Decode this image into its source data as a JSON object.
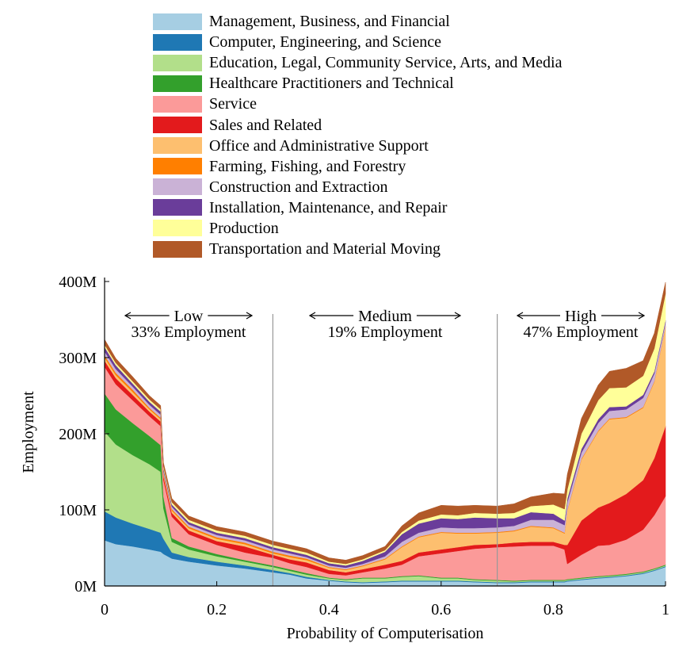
{
  "chart_data": {
    "type": "area",
    "stacked": true,
    "xlabel": "Probability of Computerisation",
    "ylabel": "Employment",
    "xlim": [
      0,
      1
    ],
    "ylim": [
      0,
      400
    ],
    "x_ticks": [
      "0",
      "0.2",
      "0.4",
      "0.6",
      "0.8",
      "1"
    ],
    "y_ticks": [
      "0M",
      "100M",
      "200M",
      "300M",
      "400M"
    ],
    "legend_position": "top",
    "region_dividers": [
      0.3,
      0.7
    ],
    "regions": [
      {
        "name": "Low",
        "share": "33% Employment"
      },
      {
        "name": "Medium",
        "share": "19% Employment"
      },
      {
        "name": "High",
        "share": "47% Employment"
      }
    ],
    "x": [
      0,
      0.02,
      0.05,
      0.08,
      0.1,
      0.105,
      0.12,
      0.15,
      0.2,
      0.25,
      0.3,
      0.33,
      0.36,
      0.4,
      0.43,
      0.46,
      0.5,
      0.53,
      0.56,
      0.6,
      0.63,
      0.66,
      0.7,
      0.73,
      0.76,
      0.8,
      0.82,
      0.825,
      0.85,
      0.88,
      0.9,
      0.93,
      0.96,
      0.98,
      1.0
    ],
    "series": [
      {
        "name": "Management, Business, and Financial",
        "color": "#a6cee3",
        "values": [
          60,
          55,
          52,
          48,
          45,
          42,
          36,
          32,
          27,
          23,
          18,
          15,
          10,
          7,
          5,
          4,
          5,
          6,
          6,
          6,
          6,
          5,
          4,
          4,
          5,
          5,
          5,
          6,
          8,
          10,
          11,
          13,
          16,
          20,
          25
        ]
      },
      {
        "name": "Computer, Engineering, and Science",
        "color": "#1f78b4",
        "values": [
          38,
          35,
          30,
          27,
          25,
          20,
          8,
          6,
          5,
          4,
          3,
          2,
          2,
          1,
          1,
          1,
          1,
          1,
          1,
          1,
          1,
          1,
          1,
          1,
          1,
          1,
          1,
          1,
          1,
          1,
          1,
          1,
          1,
          1,
          1
        ]
      },
      {
        "name": "Education, Legal, Community Service, Arts, and Media",
        "color": "#b2df8a",
        "values": [
          105,
          96,
          90,
          85,
          80,
          40,
          14,
          10,
          7,
          5,
          4,
          3,
          3,
          2,
          2,
          5,
          4,
          5,
          6,
          3,
          3,
          2,
          2,
          1,
          1,
          1,
          1,
          1,
          1,
          1,
          1,
          1,
          1,
          1,
          1
        ]
      },
      {
        "name": "Healthcare Practitioners and Technical",
        "color": "#33a02c",
        "values": [
          50,
          46,
          42,
          37,
          35,
          15,
          5,
          4,
          3,
          2,
          2,
          2,
          2,
          1,
          1,
          1,
          1,
          1,
          1,
          1,
          1,
          1,
          1,
          1,
          1,
          1,
          1,
          1,
          1,
          1,
          1,
          1,
          1,
          1,
          1
        ]
      },
      {
        "name": "Service",
        "color": "#fb9a99",
        "values": [
          35,
          33,
          30,
          26,
          25,
          22,
          28,
          16,
          12,
          10,
          10,
          8,
          8,
          5,
          5,
          7,
          12,
          15,
          25,
          32,
          35,
          40,
          43,
          45,
          45,
          45,
          40,
          20,
          30,
          40,
          40,
          45,
          55,
          70,
          90
        ]
      },
      {
        "name": "Sales and Related",
        "color": "#e31a1c",
        "values": [
          8,
          8,
          7,
          6,
          6,
          5,
          5,
          5,
          5,
          8,
          4,
          5,
          6,
          5,
          4,
          4,
          5,
          5,
          5,
          5,
          5,
          5,
          4,
          5,
          5,
          5,
          6,
          25,
          45,
          50,
          55,
          60,
          65,
          75,
          92
        ]
      },
      {
        "name": "Office and Administrative Support",
        "color": "#fdbf6f",
        "values": [
          4,
          4,
          4,
          3,
          3,
          2,
          3,
          3,
          3,
          3,
          2,
          3,
          3,
          3,
          3,
          4,
          7,
          18,
          20,
          22,
          18,
          15,
          15,
          15,
          20,
          18,
          15,
          45,
          80,
          100,
          110,
          100,
          95,
          100,
          130
        ]
      },
      {
        "name": "Farming, Fishing, and Forestry",
        "color": "#ff7f00",
        "values": [
          3,
          3,
          3,
          2,
          2,
          2,
          2,
          2,
          2,
          2,
          2,
          2,
          2,
          1,
          1,
          1,
          1,
          1,
          1,
          1,
          1,
          1,
          1,
          1,
          1,
          1,
          1,
          1,
          1,
          1,
          1,
          1,
          1,
          1,
          1
        ]
      },
      {
        "name": "Construction and Extraction",
        "color": "#cab2d6",
        "values": [
          5,
          5,
          4,
          4,
          4,
          3,
          3,
          3,
          3,
          3,
          3,
          3,
          2,
          2,
          2,
          2,
          3,
          6,
          5,
          6,
          6,
          6,
          6,
          6,
          8,
          10,
          10,
          10,
          8,
          10,
          10,
          10,
          12,
          10,
          5
        ]
      },
      {
        "name": "Installation, Maintenance, and Repair",
        "color": "#6a3d9a",
        "values": [
          6,
          5,
          4,
          4,
          4,
          3,
          3,
          3,
          3,
          3,
          3,
          3,
          3,
          3,
          3,
          4,
          6,
          10,
          12,
          12,
          12,
          14,
          12,
          10,
          10,
          8,
          6,
          5,
          5,
          5,
          5,
          4,
          4,
          3,
          3
        ]
      },
      {
        "name": "Production",
        "color": "#ffff99",
        "values": [
          3,
          3,
          3,
          3,
          3,
          3,
          3,
          3,
          3,
          3,
          3,
          3,
          3,
          2,
          2,
          2,
          2,
          3,
          4,
          5,
          5,
          6,
          6,
          7,
          8,
          12,
          15,
          12,
          20,
          25,
          25,
          25,
          25,
          30,
          35
        ]
      },
      {
        "name": "Transportation and Material Moving",
        "color": "#b15928",
        "values": [
          7,
          6,
          6,
          5,
          5,
          5,
          5,
          5,
          5,
          5,
          5,
          5,
          5,
          5,
          5,
          5,
          5,
          8,
          10,
          12,
          12,
          10,
          10,
          12,
          12,
          15,
          20,
          20,
          20,
          20,
          22,
          25,
          20,
          20,
          15
        ]
      }
    ]
  }
}
